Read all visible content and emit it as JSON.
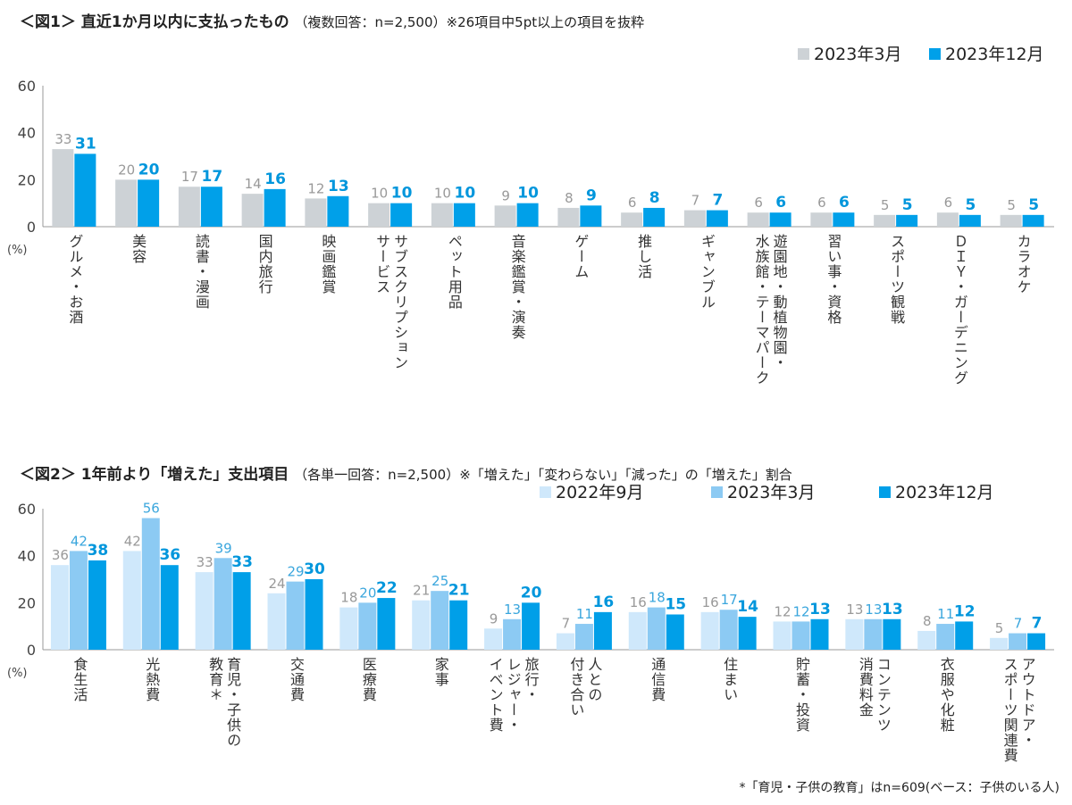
{
  "chart_data": [
    {
      "type": "bar",
      "title": "＜図1＞ 直近1か月以内に支払ったもの",
      "subtitle": "（複数回答：n=2,500）※26項目中5pt以上の項目を抜粋",
      "ylabel": "(%)",
      "ylim": [
        0,
        60
      ],
      "yticks": [
        0,
        20,
        40,
        60
      ],
      "grid": false,
      "legend": "top-right",
      "categories": [
        "グルメ・お酒",
        "美容",
        "読書・漫画",
        "国内旅行",
        "映画鑑賞",
        "サブスクリプション\nサービス",
        "ペット用品",
        "音楽鑑賞・演奏",
        "ゲーム",
        "推し活",
        "ギャンブル",
        "遊園地・動植物園・\n水族館・テーマパーク",
        "習い事・資格",
        "スポーツ観戦",
        "ＤＩＹ・ガーデニング",
        "カラオケ"
      ],
      "series": [
        {
          "name": "2023年3月",
          "color": "#cdd2d6",
          "label_color": "#999999",
          "bold": false,
          "values": [
            33,
            20,
            17,
            14,
            12,
            10,
            10,
            9,
            8,
            6,
            7,
            6,
            6,
            5,
            6,
            5
          ]
        },
        {
          "name": "2023年12月",
          "color": "#00a0e9",
          "label_color": "#0096dc",
          "bold": true,
          "values": [
            31,
            20,
            17,
            16,
            13,
            10,
            10,
            10,
            9,
            8,
            7,
            6,
            6,
            5,
            5,
            5
          ]
        }
      ]
    },
    {
      "type": "bar",
      "title": "＜図2＞ 1年前より「増えた」支出項目",
      "subtitle": "（各単一回答：n=2,500）※「増えた」「変わらない」「減った」の「増えた」割合",
      "ylabel": "(%)",
      "ylim": [
        0,
        60
      ],
      "yticks": [
        0,
        20,
        40,
        60
      ],
      "grid": false,
      "legend": "top-right",
      "categories": [
        "食生活",
        "光熱費",
        "育児・子供の\n教育＊",
        "交通費",
        "医療費",
        "家事",
        "旅行・\nレジャー・\nイベント費",
        "人との\n付き合い",
        "通信費",
        "住まい",
        "貯蓄・投資",
        "コンテンツ\n消費料金",
        "衣服や化粧",
        "アウトドア・\nスポーツ関連費"
      ],
      "series": [
        {
          "name": "2022年9月",
          "color": "#cfe8fb",
          "label_color": "#999999",
          "bold": false,
          "values": [
            36,
            42,
            33,
            24,
            18,
            21,
            9,
            7,
            16,
            16,
            12,
            13,
            8,
            5
          ]
        },
        {
          "name": "2023年3月",
          "color": "#8ccaf3",
          "label_color": "#3aa6dd",
          "bold": false,
          "values": [
            42,
            56,
            39,
            29,
            20,
            25,
            13,
            11,
            18,
            17,
            12,
            13,
            11,
            7
          ]
        },
        {
          "name": "2023年12月",
          "color": "#009fe8",
          "label_color": "#0096dc",
          "bold": true,
          "values": [
            38,
            36,
            33,
            30,
            22,
            21,
            20,
            16,
            15,
            14,
            13,
            13,
            12,
            7
          ]
        }
      ],
      "footnote": "*「育児・子供の教育」はn=609(ベース：子供のいる人)"
    }
  ]
}
